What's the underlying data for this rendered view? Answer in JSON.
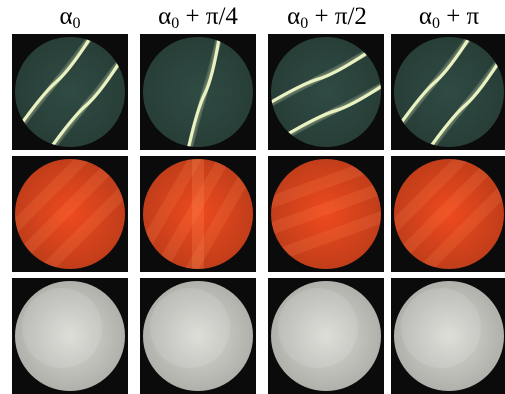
{
  "columns": [
    {
      "symbol": "α",
      "subscript": "0",
      "suffix": ""
    },
    {
      "symbol": "α",
      "subscript": "0",
      "suffix": " + π/4"
    },
    {
      "symbol": "α",
      "subscript": "0",
      "suffix": " + π/2"
    },
    {
      "symbol": "α",
      "subscript": "0",
      "suffix": " + π"
    }
  ],
  "rows": [
    {
      "kind": "green-fringes",
      "disc_color": "#2f4b43",
      "line_color": "#eaf2c2"
    },
    {
      "kind": "red-disc",
      "disc_color": "#ef4a1e",
      "line_color": "#ff8a55"
    },
    {
      "kind": "white-disc",
      "disc_color": "#d9dad3",
      "line_color": "#ffffff"
    }
  ],
  "colors": {
    "background": "#ffffff",
    "tile_background": "#0b0b0b"
  }
}
